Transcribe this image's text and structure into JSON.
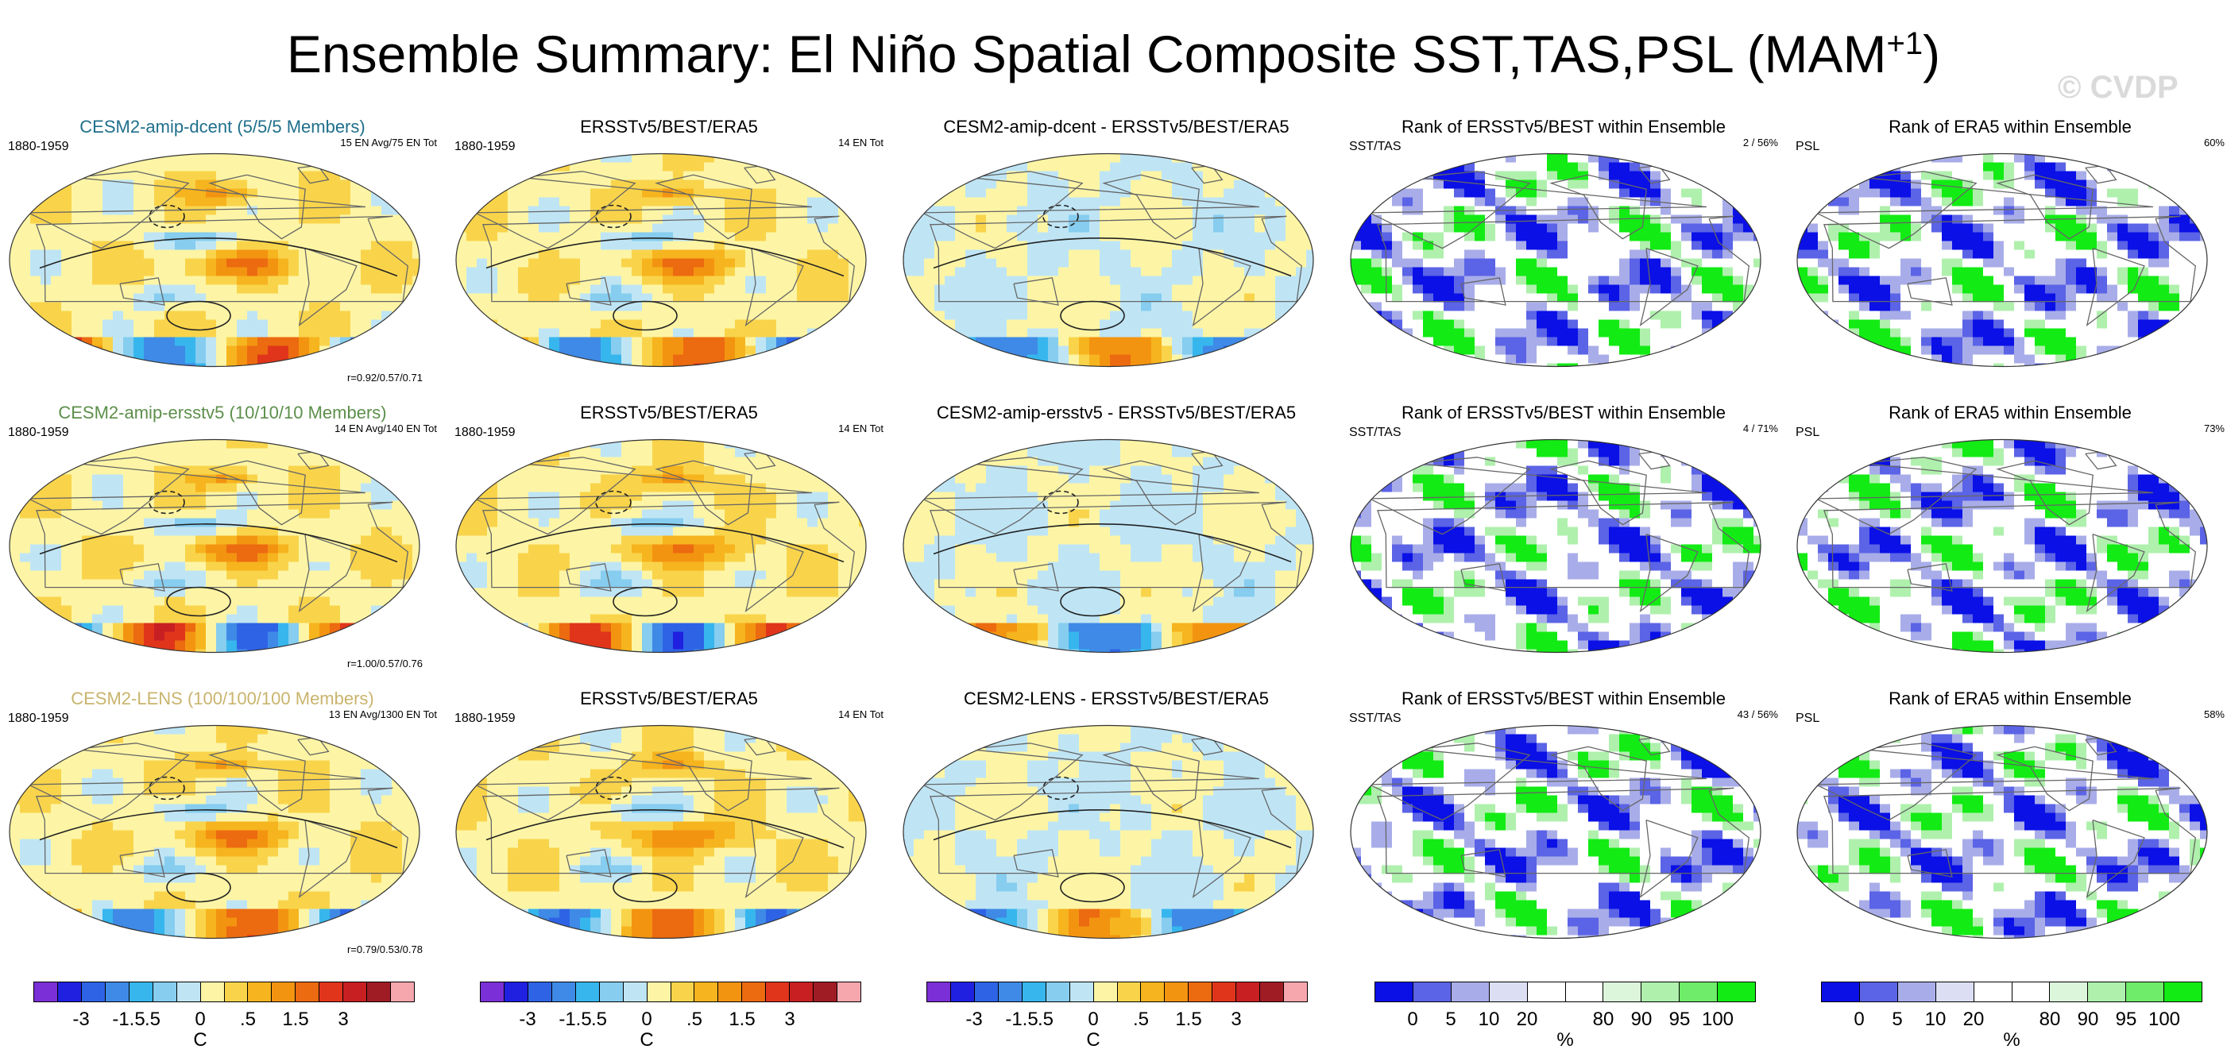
{
  "page": {
    "title_main": "Ensemble Summary: El Niño Spatial Composite SST,TAS,PSL (MAM",
    "title_sup": "+1",
    "title_end": ")",
    "watermark": "© CVDP"
  },
  "chart_data": [
    {
      "type": "heatmap",
      "row": 0,
      "col": 0,
      "kind": "anom",
      "title": "CESM2-amip-dcent (5/5/5 Members)",
      "left_label": "1880-1959",
      "right_label": "15 EN Avg/75 EN Tot",
      "corr_label": "r=0.92/0.57/0.71"
    },
    {
      "type": "heatmap",
      "row": 0,
      "col": 1,
      "kind": "anom",
      "title": "ERSSTv5/BEST/ERA5",
      "left_label": "1880-1959",
      "right_label": "14 EN Tot"
    },
    {
      "type": "heatmap",
      "row": 0,
      "col": 2,
      "kind": "diff",
      "title": "CESM2-amip-dcent - ERSSTv5/BEST/ERA5"
    },
    {
      "type": "heatmap",
      "row": 0,
      "col": 3,
      "kind": "rank",
      "title": "Rank of ERSSTv5/BEST within Ensemble",
      "left_label": "SST/TAS",
      "right_label": "2 /  56%"
    },
    {
      "type": "heatmap",
      "row": 0,
      "col": 4,
      "kind": "rank",
      "title": "Rank of ERA5 within Ensemble",
      "left_label": "PSL",
      "right_label": "60%"
    },
    {
      "type": "heatmap",
      "row": 1,
      "col": 0,
      "kind": "anom",
      "title": "CESM2-amip-ersstv5 (10/10/10 Members)",
      "left_label": "1880-1959",
      "right_label": "14 EN Avg/140 EN Tot",
      "corr_label": "r=1.00/0.57/0.76"
    },
    {
      "type": "heatmap",
      "row": 1,
      "col": 1,
      "kind": "anom",
      "title": "ERSSTv5/BEST/ERA5",
      "left_label": "1880-1959",
      "right_label": "14 EN Tot"
    },
    {
      "type": "heatmap",
      "row": 1,
      "col": 2,
      "kind": "diff",
      "title": "CESM2-amip-ersstv5 - ERSSTv5/BEST/ERA5"
    },
    {
      "type": "heatmap",
      "row": 1,
      "col": 3,
      "kind": "rank",
      "title": "Rank of ERSSTv5/BEST within Ensemble",
      "left_label": "SST/TAS",
      "right_label": "4 /  71%"
    },
    {
      "type": "heatmap",
      "row": 1,
      "col": 4,
      "kind": "rank",
      "title": "Rank of ERA5 within Ensemble",
      "left_label": "PSL",
      "right_label": "73%"
    },
    {
      "type": "heatmap",
      "row": 2,
      "col": 0,
      "kind": "anom",
      "title": "CESM2-LENS (100/100/100 Members)",
      "left_label": "1880-1959",
      "right_label": "13 EN Avg/1300 EN Tot",
      "corr_label": "r=0.79/0.53/0.78"
    },
    {
      "type": "heatmap",
      "row": 2,
      "col": 1,
      "kind": "anom",
      "title": "ERSSTv5/BEST/ERA5",
      "left_label": "1880-1959",
      "right_label": "14 EN Tot"
    },
    {
      "type": "heatmap",
      "row": 2,
      "col": 2,
      "kind": "diff",
      "title": "CESM2-LENS - ERSSTv5/BEST/ERA5"
    },
    {
      "type": "heatmap",
      "row": 2,
      "col": 3,
      "kind": "rank",
      "title": "Rank of ERSSTv5/BEST within Ensemble",
      "left_label": "SST/TAS",
      "right_label": "43 /  56%"
    },
    {
      "type": "heatmap",
      "row": 2,
      "col": 4,
      "kind": "rank",
      "title": "Rank of ERA5 within Ensemble",
      "left_label": "PSL",
      "right_label": "58%"
    }
  ],
  "colorbars": [
    {
      "kind": "anom",
      "unit": "C",
      "ticks": [
        "-3",
        "-1.5",
        ".5",
        "0",
        ".5",
        "1.5",
        "3"
      ],
      "colors": [
        "#7b2fd6",
        "#2020e0",
        "#2e63e6",
        "#3f8ae6",
        "#37b6ee",
        "#86cdef",
        "#bfe5f5",
        "#fdf5a5",
        "#f9d44b",
        "#f6b41e",
        "#f39411",
        "#ec6a10",
        "#e0351b",
        "#c81f22",
        "#a01c25",
        "#f6a6ad"
      ]
    },
    {
      "kind": "anom",
      "unit": "C",
      "ticks": [
        "-3",
        "-1.5",
        ".5",
        "0",
        ".5",
        "1.5",
        "3"
      ],
      "colors": [
        "#7b2fd6",
        "#2020e0",
        "#2e63e6",
        "#3f8ae6",
        "#37b6ee",
        "#86cdef",
        "#bfe5f5",
        "#fdf5a5",
        "#f9d44b",
        "#f6b41e",
        "#f39411",
        "#ec6a10",
        "#e0351b",
        "#c81f22",
        "#a01c25",
        "#f6a6ad"
      ]
    },
    {
      "kind": "anom",
      "unit": "C",
      "ticks": [
        "-3",
        "-1.5",
        ".5",
        "0",
        ".5",
        "1.5",
        "3"
      ],
      "colors": [
        "#7b2fd6",
        "#2020e0",
        "#2e63e6",
        "#3f8ae6",
        "#37b6ee",
        "#86cdef",
        "#bfe5f5",
        "#fdf5a5",
        "#f9d44b",
        "#f6b41e",
        "#f39411",
        "#ec6a10",
        "#e0351b",
        "#c81f22",
        "#a01c25",
        "#f6a6ad"
      ]
    },
    {
      "kind": "rank",
      "unit": "%",
      "ticks": [
        "0",
        "5",
        "10",
        "20",
        "80",
        "90",
        "95",
        "100"
      ],
      "colors": [
        "#0a10e6",
        "#5b63e6",
        "#a8ade9",
        "#dcdff4",
        "#ffffff",
        "#ffffff",
        "#dcf6dc",
        "#aff0ad",
        "#6fec69",
        "#13eb14"
      ]
    },
    {
      "kind": "rank",
      "unit": "%",
      "ticks": [
        "0",
        "5",
        "10",
        "20",
        "80",
        "90",
        "95",
        "100"
      ],
      "colors": [
        "#0a10e6",
        "#5b63e6",
        "#a8ade9",
        "#dcdff4",
        "#ffffff",
        "#ffffff",
        "#dcf6dc",
        "#aff0ad",
        "#6fec69",
        "#13eb14"
      ]
    }
  ]
}
